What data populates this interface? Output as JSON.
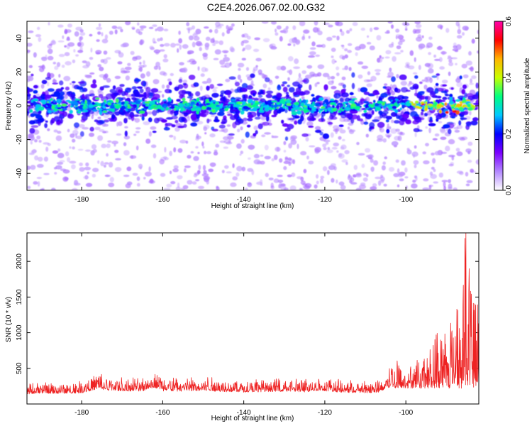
{
  "title": "C2E4.2026.067.02.00.G32",
  "chart_data": [
    {
      "type": "heatmap",
      "xlabel": "Height of straight line (km)",
      "ylabel": "Frequency (Hz)",
      "xlim": [
        -193.5,
        -82
      ],
      "ylim": [
        -50,
        50
      ],
      "xticks": [
        -180,
        -160,
        -140,
        -120,
        -100
      ],
      "xtick_labels": [
        "-180",
        "-160",
        "-140",
        "-120",
        "-100"
      ],
      "yticks": [
        -40,
        -20,
        0,
        20,
        40
      ],
      "ytick_labels": [
        "-40",
        "-20",
        "0",
        "20",
        "40"
      ],
      "description_of_content": "Band of strong spectral amplitude centred near 0 Hz across all heights, strongest (up to ~0.6) near -90 to -84 km",
      "colorbar": {
        "label": "Normalized spectral amplitude",
        "range": [
          0,
          0.6
        ],
        "ticks": [
          0,
          0.2,
          0.4,
          0.6
        ],
        "tick_labels": [
          "0.0",
          "0.2",
          "0.4",
          "0.6"
        ],
        "colormap": [
          "#ffffff",
          "#b388ff",
          "#7b00ff",
          "#0000ff",
          "#00c8ff",
          "#00ff80",
          "#c8ff00",
          "#ffb400",
          "#ff0000",
          "#ff00aa"
        ]
      }
    },
    {
      "type": "line",
      "xlabel": "Height of straight line (km)",
      "ylabel": "SNR (10 * v/v)",
      "xlim": [
        -193.5,
        -82
      ],
      "ylim": [
        0,
        2400
      ],
      "xticks": [
        -180,
        -160,
        -140,
        -120,
        -100
      ],
      "xtick_labels": [
        "-180",
        "-160",
        "-140",
        "-120",
        "-100"
      ],
      "yticks": [
        500,
        1000,
        1500,
        2000
      ],
      "ytick_labels": [
        "500",
        "1000",
        "1500",
        "2000"
      ],
      "series": [
        {
          "name": "SNR",
          "color": "#ee2222",
          "x": [
            -193.5,
            -190,
            -185,
            -180,
            -176,
            -174,
            -170,
            -165,
            -162,
            -160,
            -155,
            -150,
            -145,
            -140,
            -135,
            -130,
            -125,
            -121,
            -118,
            -115,
            -110,
            -106,
            -104,
            -102,
            -100,
            -98,
            -96,
            -94,
            -92,
            -90,
            -88,
            -86,
            -85,
            -84,
            -83,
            -82
          ],
          "y": [
            250,
            270,
            260,
            280,
            380,
            340,
            330,
            320,
            450,
            330,
            320,
            340,
            310,
            300,
            310,
            320,
            300,
            340,
            310,
            290,
            280,
            300,
            500,
            550,
            450,
            520,
            600,
            750,
            900,
            950,
            1200,
            1700,
            2300,
            1400,
            1600,
            1200
          ]
        }
      ]
    }
  ]
}
